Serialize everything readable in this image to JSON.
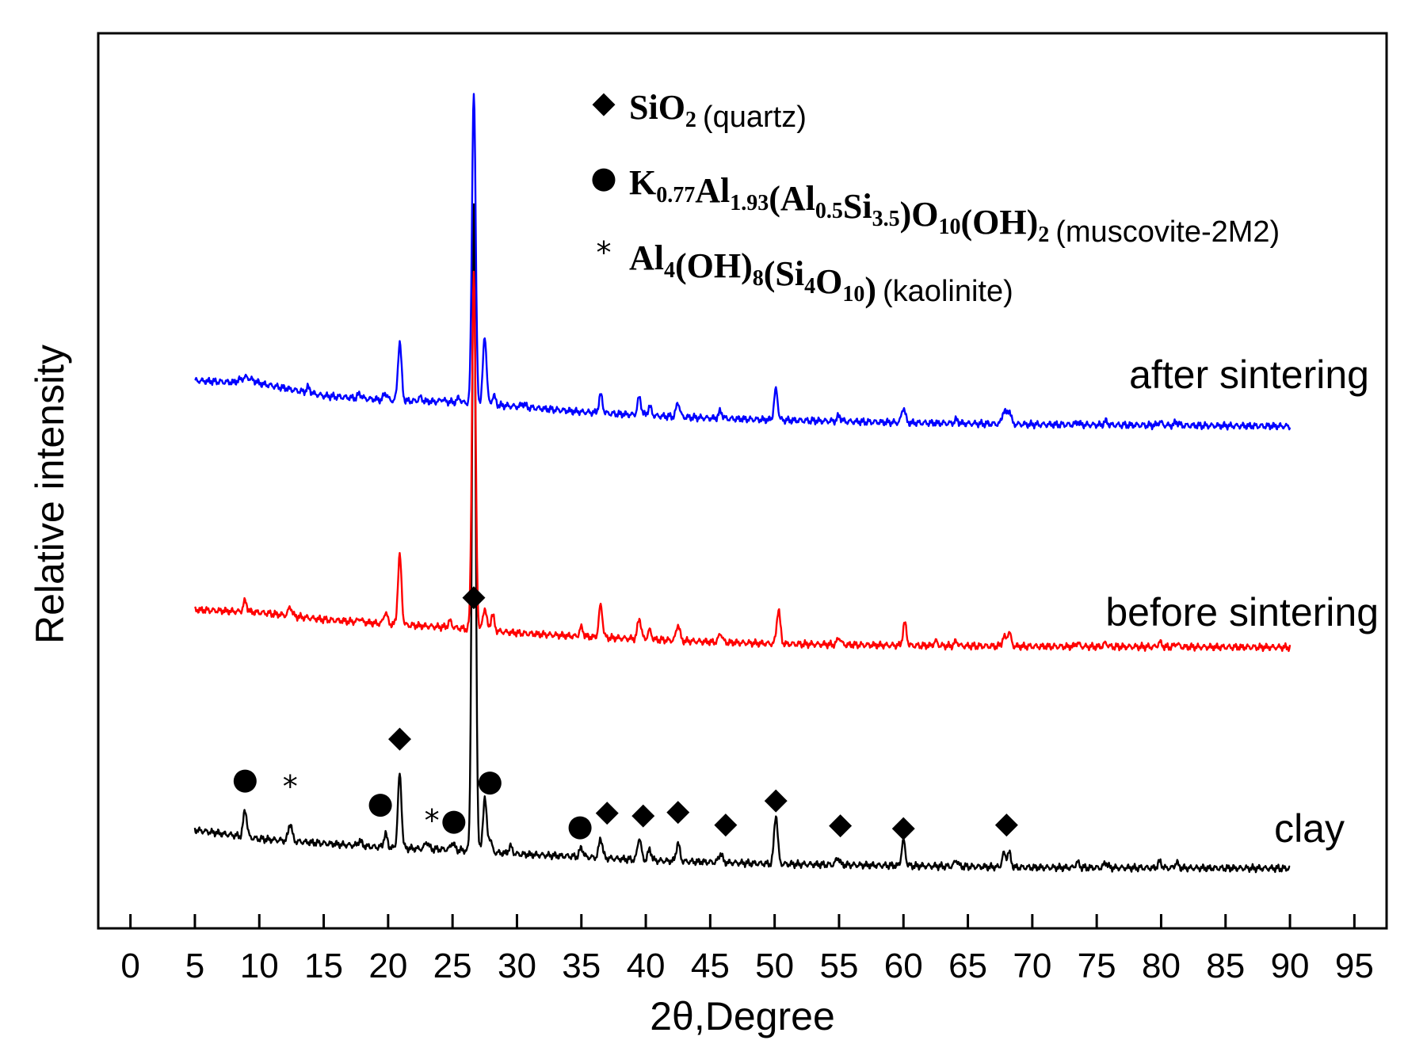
{
  "chart_data": {
    "type": "line",
    "xlabel": "2θ,Degree",
    "ylabel": "Relative intensity",
    "xlim": [
      -2.5,
      97.5
    ],
    "ylim": [
      0,
      100
    ],
    "x_ticks": [
      0,
      5,
      10,
      15,
      20,
      25,
      30,
      35,
      40,
      45,
      50,
      55,
      60,
      65,
      70,
      75,
      80,
      85,
      90,
      95
    ],
    "y_ticks_visible": false,
    "grid": false,
    "series": [
      {
        "name": "clay",
        "color": "#000000",
        "baseline": [
          [
            5,
            11.0
          ],
          [
            10,
            10.0
          ],
          [
            15,
            9.5
          ],
          [
            20,
            9.0
          ],
          [
            25,
            8.8
          ],
          [
            30,
            8.3
          ],
          [
            35,
            8.0
          ],
          [
            40,
            7.6
          ],
          [
            45,
            7.4
          ],
          [
            50,
            7.2
          ],
          [
            60,
            7.0
          ],
          [
            70,
            6.8
          ],
          [
            90,
            6.7
          ]
        ],
        "peaks": [
          [
            8.9,
            3.0
          ],
          [
            12.4,
            2.0
          ],
          [
            17.8,
            0.6
          ],
          [
            19.8,
            1.5
          ],
          [
            20.9,
            8.2
          ],
          [
            23.0,
            0.8
          ],
          [
            25.0,
            0.8
          ],
          [
            26.65,
            72.0
          ],
          [
            27.5,
            6.0
          ],
          [
            27.9,
            1.5
          ],
          [
            29.5,
            0.8
          ],
          [
            35.0,
            1.0
          ],
          [
            36.5,
            2.2
          ],
          [
            39.5,
            2.5
          ],
          [
            40.3,
            1.2
          ],
          [
            42.5,
            2.0
          ],
          [
            45.8,
            1.0
          ],
          [
            50.1,
            5.5
          ],
          [
            54.9,
            0.8
          ],
          [
            60.0,
            2.8
          ],
          [
            64.1,
            0.7
          ],
          [
            67.8,
            1.5
          ],
          [
            68.2,
            1.6
          ],
          [
            73.5,
            0.6
          ],
          [
            75.7,
            0.6
          ],
          [
            79.9,
            0.7
          ],
          [
            81.2,
            0.6
          ]
        ],
        "label": "clay"
      },
      {
        "name": "before sintering",
        "color": "#ff0000",
        "baseline": [
          [
            5,
            35.6
          ],
          [
            10,
            35.3
          ],
          [
            15,
            34.5
          ],
          [
            20,
            34.0
          ],
          [
            25,
            33.6
          ],
          [
            30,
            33.0
          ],
          [
            35,
            32.6
          ],
          [
            40,
            32.3
          ],
          [
            45,
            32.0
          ],
          [
            50,
            31.8
          ],
          [
            60,
            31.6
          ],
          [
            70,
            31.5
          ],
          [
            90,
            31.4
          ]
        ],
        "peaks": [
          [
            8.9,
            1.2
          ],
          [
            12.4,
            1.0
          ],
          [
            17.8,
            0.4
          ],
          [
            19.8,
            1.3
          ],
          [
            20.9,
            7.7
          ],
          [
            24.8,
            0.7
          ],
          [
            26.65,
            40.0
          ],
          [
            27.5,
            2.5
          ],
          [
            28.1,
            1.8
          ],
          [
            35.0,
            1.0
          ],
          [
            36.5,
            3.6
          ],
          [
            39.5,
            2.3
          ],
          [
            40.3,
            1.0
          ],
          [
            42.5,
            1.8
          ],
          [
            45.8,
            1.0
          ],
          [
            50.3,
            3.8
          ],
          [
            55.0,
            0.8
          ],
          [
            60.1,
            2.5
          ],
          [
            62.5,
            0.5
          ],
          [
            64.1,
            0.5
          ],
          [
            67.8,
            1.0
          ],
          [
            68.2,
            1.6
          ],
          [
            73.5,
            0.4
          ],
          [
            75.7,
            0.4
          ],
          [
            79.9,
            0.5
          ],
          [
            81.2,
            0.4
          ]
        ],
        "label": "before sintering"
      },
      {
        "name": "after sintering",
        "color": "#0000ff",
        "baseline": [
          [
            5,
            61.2
          ],
          [
            8,
            61.0
          ],
          [
            9,
            61.6
          ],
          [
            10,
            60.9
          ],
          [
            15,
            59.5
          ],
          [
            20,
            59.0
          ],
          [
            25,
            58.8
          ],
          [
            30,
            58.3
          ],
          [
            35,
            57.7
          ],
          [
            40,
            57.3
          ],
          [
            45,
            57.0
          ],
          [
            50,
            56.8
          ],
          [
            60,
            56.5
          ],
          [
            70,
            56.3
          ],
          [
            90,
            56.1
          ]
        ],
        "peaks": [
          [
            13.8,
            0.6
          ],
          [
            17.8,
            0.5
          ],
          [
            19.8,
            0.8
          ],
          [
            20.9,
            6.5
          ],
          [
            22.5,
            0.4
          ],
          [
            24.2,
            0.3
          ],
          [
            25.5,
            0.5
          ],
          [
            26.65,
            35.0
          ],
          [
            27.5,
            7.6
          ],
          [
            28.2,
            1.0
          ],
          [
            30.5,
            0.4
          ],
          [
            36.5,
            2.0
          ],
          [
            39.5,
            2.0
          ],
          [
            40.3,
            1.0
          ],
          [
            42.5,
            1.6
          ],
          [
            45.8,
            0.8
          ],
          [
            50.1,
            3.4
          ],
          [
            55.0,
            0.6
          ],
          [
            60.0,
            1.7
          ],
          [
            64.1,
            0.4
          ],
          [
            67.8,
            1.5
          ],
          [
            68.2,
            1.6
          ],
          [
            73.5,
            0.3
          ],
          [
            75.7,
            0.4
          ],
          [
            79.9,
            0.4
          ],
          [
            81.2,
            0.4
          ]
        ],
        "label": "after sintering"
      }
    ],
    "peak_markers": [
      {
        "x": 8.9,
        "y": 16.5,
        "symbol": "●",
        "phase": "muscovite"
      },
      {
        "x": 12.4,
        "y": 15.6,
        "symbol": "*",
        "phase": "kaolinite"
      },
      {
        "x": 19.4,
        "y": 13.8,
        "symbol": "●",
        "phase": "muscovite"
      },
      {
        "x": 20.9,
        "y": 21.2,
        "symbol": "◆",
        "phase": "quartz"
      },
      {
        "x": 23.4,
        "y": 11.8,
        "symbol": "*",
        "phase": "kaolinite"
      },
      {
        "x": 25.1,
        "y": 11.9,
        "symbol": "●",
        "phase": "muscovite"
      },
      {
        "x": 26.65,
        "y": 37.0,
        "symbol": "◆",
        "phase": "quartz"
      },
      {
        "x": 27.9,
        "y": 16.3,
        "symbol": "●",
        "phase": "muscovite"
      },
      {
        "x": 34.9,
        "y": 11.3,
        "symbol": "●",
        "phase": "muscovite"
      },
      {
        "x": 37.0,
        "y": 12.9,
        "symbol": "◆",
        "phase": "quartz"
      },
      {
        "x": 39.8,
        "y": 12.6,
        "symbol": "◆",
        "phase": "quartz"
      },
      {
        "x": 42.5,
        "y": 13.0,
        "symbol": "◆",
        "phase": "quartz"
      },
      {
        "x": 46.2,
        "y": 11.6,
        "symbol": "◆",
        "phase": "quartz"
      },
      {
        "x": 50.1,
        "y": 14.3,
        "symbol": "◆",
        "phase": "quartz"
      },
      {
        "x": 55.1,
        "y": 11.5,
        "symbol": "◆",
        "phase": "quartz"
      },
      {
        "x": 60.0,
        "y": 11.2,
        "symbol": "◆",
        "phase": "quartz"
      },
      {
        "x": 68.0,
        "y": 11.6,
        "symbol": "◆",
        "phase": "quartz"
      }
    ],
    "legend": {
      "position": "top-center",
      "entries": [
        {
          "symbol": "◆",
          "formula_parts": [
            [
              "SiO",
              false
            ],
            [
              "2",
              true
            ]
          ],
          "name": "(quartz)"
        },
        {
          "symbol": "●",
          "formula_parts": [
            [
              "K",
              false
            ],
            [
              "0.77",
              true
            ],
            [
              "Al",
              false
            ],
            [
              "1.93",
              true
            ],
            [
              "(Al",
              false
            ],
            [
              "0.5",
              true
            ],
            [
              "Si",
              false
            ],
            [
              "3.5",
              true
            ],
            [
              ")O",
              false
            ],
            [
              "10",
              true
            ],
            [
              "(OH)",
              false
            ],
            [
              "2",
              true
            ]
          ],
          "name": "(muscovite-2M2)"
        },
        {
          "symbol": "*",
          "formula_parts": [
            [
              "Al",
              false
            ],
            [
              "4",
              true
            ],
            [
              "(OH)",
              false
            ],
            [
              "8",
              true
            ],
            [
              "(Si",
              false
            ],
            [
              "4",
              true
            ],
            [
              "O",
              false
            ],
            [
              "10",
              true
            ],
            [
              ")",
              false
            ]
          ],
          "name": "(kaolinite)"
        }
      ]
    }
  }
}
